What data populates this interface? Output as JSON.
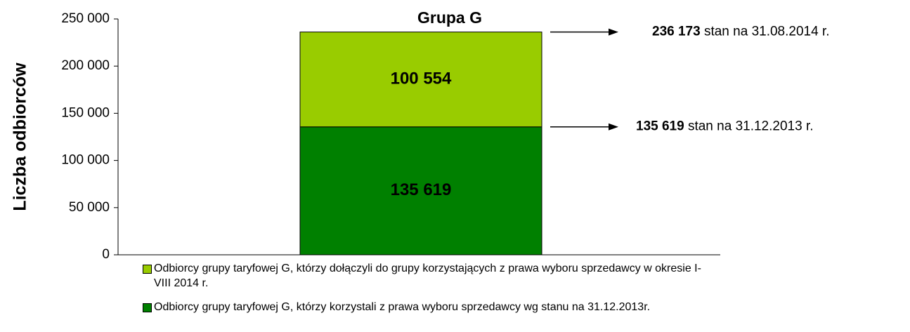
{
  "chart_data": {
    "type": "stacked_bar",
    "title": "Grupa G",
    "ylabel": "Liczba odbiorców",
    "categories": [
      null
    ],
    "series": [
      {
        "name": "Odbiorcy grupy taryfowej G, którzy korzystali z prawa wyboru sprzedawcy wg stanu na 31.12.2013r.",
        "color": "#008000",
        "values": [
          135619
        ],
        "value_labels": [
          "135 619"
        ]
      },
      {
        "name": "Odbiorcy grupy taryfowej G, którzy dołączyli do grupy korzystających z  prawa wyboru sprzedawcy w okresie I-VIII 2014 r.",
        "color": "#99cc00",
        "values": [
          100554
        ],
        "value_labels": [
          "100 554"
        ]
      }
    ],
    "ylim": [
      0,
      250000
    ],
    "yticks": [
      0,
      {
        "value": 50000,
        "label": "50 000"
      },
      {
        "value": 100000,
        "label": "100 000"
      },
      {
        "value": 150000,
        "label": "150 000"
      },
      {
        "value": 200000,
        "label": "200 000"
      },
      {
        "value": 250000,
        "label": "250 000"
      }
    ],
    "annotations": [
      {
        "value": 236173,
        "label": "236 173",
        "text": " stan na 31.08.2014 r."
      },
      {
        "value": 135619,
        "label": "135 619",
        "text": " stan na 31.12.2013 r."
      }
    ]
  }
}
